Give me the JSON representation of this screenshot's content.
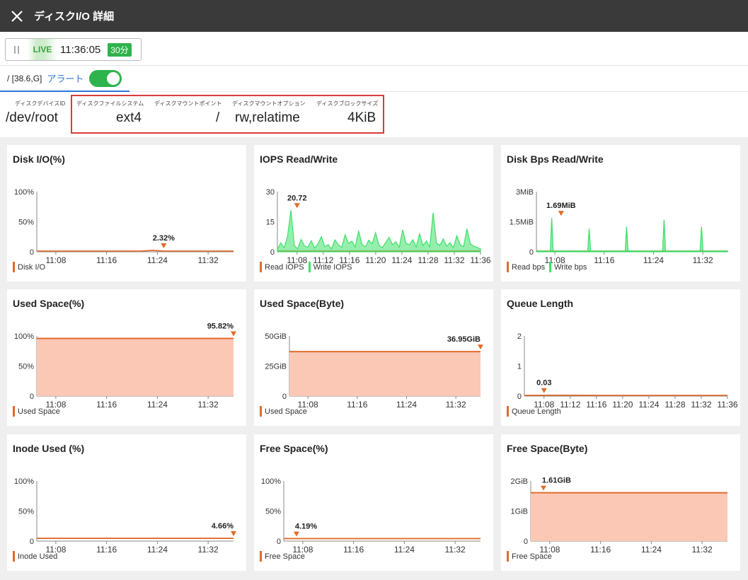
{
  "window": {
    "title": "ディスクI/O 詳細",
    "close_icon": "close-icon"
  },
  "toolbar": {
    "live_label": "LIVE",
    "time": "11:36:05",
    "range_badge": "30分",
    "pause_icon": "pause-icon"
  },
  "tab": {
    "path": "/ [38.6,G]",
    "alert_label": "アラート",
    "alert_enabled": true
  },
  "info": [
    {
      "label": "ディスクデバイスID",
      "value": "/dev/root"
    },
    {
      "label": "ディスクファイルシステム",
      "value": "ext4"
    },
    {
      "label": "ディスクマウントポイント",
      "value": "/"
    },
    {
      "label": "ディスクマウントオプション",
      "value": "rw,relatime"
    },
    {
      "label": "ディスクブロックサイズ",
      "value": "4KiB"
    }
  ],
  "colors": {
    "orange": "#e06c2c",
    "green": "#3fe06a",
    "fill": "#fbc8b6",
    "badge": "#2eb34d",
    "accent": "#2f74d8"
  },
  "chart_data": [
    {
      "type": "line",
      "title": "Disk I/O(%)",
      "yticks": [
        "100%",
        "50%",
        "0"
      ],
      "ylim": [
        0,
        100
      ],
      "xticks": [
        "11:08",
        "11:16",
        "11:24",
        "11:32"
      ],
      "series": [
        {
          "name": "Disk I/O",
          "color": "#e06c2c",
          "shape": "flat",
          "values": [
            0.3,
            0.4,
            0.5,
            0.4,
            0.6,
            0.5,
            0.4,
            0.7,
            0.8,
            1.0,
            2.32,
            0.6,
            0.5,
            0.5,
            0.4,
            0.5,
            0.4,
            0.3
          ]
        }
      ],
      "peak": {
        "label": "2.32%",
        "value": 2.32,
        "time": "11:25"
      }
    },
    {
      "type": "line",
      "title": "IOPS Read/Write",
      "yticks": [
        "30",
        "15",
        "0"
      ],
      "ylim": [
        0,
        30
      ],
      "xticks": [
        "11:08",
        "11:12",
        "11:16",
        "11:20",
        "11:24",
        "11:28",
        "11:32",
        "11:36"
      ],
      "series": [
        {
          "name": "Read IOPS",
          "color": "#e06c2c",
          "shape": "flat",
          "values": [
            0.1,
            0.1,
            0.1
          ]
        },
        {
          "name": "Write IOPS",
          "color": "#3fe06a",
          "shape": "noisy",
          "values": [
            1.2,
            4.5,
            2.0,
            7.8,
            20.72,
            3.1,
            1.5,
            6.2,
            3.0,
            2.2,
            5.5,
            1.8,
            4.0,
            7.5,
            2.5,
            3.6,
            1.5,
            6.0,
            3.5,
            2.2,
            8.5,
            4.2,
            5.3,
            2.4,
            10.5,
            3.6,
            2.5,
            5.8,
            4.0,
            9.5,
            3.2,
            2.1,
            4.6,
            7.2,
            3.5,
            5.0,
            2.2,
            11.0,
            4.2,
            3.5,
            6.1,
            2.4,
            9.0,
            3.1,
            5.4,
            2.5,
            19.5,
            4.4,
            3.2,
            6.5,
            2.8,
            4.5,
            2.1,
            8.0,
            3.5,
            2.6,
            11.5,
            4.0,
            2.8,
            2.2,
            1.5
          ]
        }
      ],
      "peak": {
        "label": "20.72",
        "value": 20.72,
        "time": "11:08"
      }
    },
    {
      "type": "line",
      "title": "Disk Bps Read/Write",
      "yticks": [
        "3MiB",
        "1.5MiB",
        "0"
      ],
      "ylim": [
        0,
        3
      ],
      "xticks": [
        "11:08",
        "11:16",
        "11:24",
        "11:32"
      ],
      "series": [
        {
          "name": "Read bps",
          "color": "#e06c2c",
          "shape": "flat",
          "values": [
            0,
            0,
            0
          ]
        },
        {
          "name": "Write bps",
          "color": "#3fe06a",
          "shape": "spikes",
          "values": [
            0.05,
            1.69,
            0.05,
            0.05,
            1.15,
            0.05,
            0.05,
            1.25,
            0.05,
            0.05,
            1.6,
            0.05,
            0.05,
            1.25,
            0.05,
            0.05
          ]
        }
      ],
      "peak": {
        "label": "1.69MiB",
        "value": 1.69,
        "time": "11:09"
      }
    },
    {
      "type": "area",
      "title": "Used Space(%)",
      "yticks": [
        "100%",
        "50%",
        "0"
      ],
      "ylim": [
        0,
        100
      ],
      "xticks": [
        "11:08",
        "11:16",
        "11:24",
        "11:32"
      ],
      "series": [
        {
          "name": "Used Space",
          "color": "#e06c2c",
          "shape": "area",
          "values": [
            95.82,
            95.82
          ]
        }
      ],
      "peak": {
        "label": "95.82%",
        "value": 95.82,
        "time": "11:36"
      }
    },
    {
      "type": "area",
      "title": "Used Space(Byte)",
      "yticks": [
        "50GiB",
        "25GiB",
        "0"
      ],
      "ylim": [
        0,
        50
      ],
      "xticks": [
        "11:08",
        "11:16",
        "11:24",
        "11:32"
      ],
      "series": [
        {
          "name": "Used Space",
          "color": "#e06c2c",
          "shape": "area",
          "values": [
            36.95,
            36.95
          ]
        }
      ],
      "peak": {
        "label": "36.95GiB",
        "value": 36.95,
        "time": "11:36"
      }
    },
    {
      "type": "line",
      "title": "Queue Length",
      "yticks": [
        "2",
        "1",
        "0"
      ],
      "ylim": [
        0,
        2
      ],
      "xticks": [
        "11:08",
        "11:12",
        "11:16",
        "11:20",
        "11:24",
        "11:28",
        "11:32",
        "11:36"
      ],
      "series": [
        {
          "name": "Queue Length",
          "color": "#e06c2c",
          "shape": "flat",
          "values": [
            0.01,
            0.03,
            0.01,
            0.01,
            0.01,
            0.01
          ]
        }
      ],
      "peak": {
        "label": "0.03",
        "value": 0.03,
        "time": "11:08"
      }
    },
    {
      "type": "line",
      "title": "Inode Used (%)",
      "yticks": [
        "100%",
        "50%",
        "0"
      ],
      "ylim": [
        0,
        100
      ],
      "xticks": [
        "11:08",
        "11:16",
        "11:24",
        "11:32"
      ],
      "series": [
        {
          "name": "Inode Used",
          "color": "#e06c2c",
          "shape": "flat",
          "values": [
            4.66,
            4.66
          ]
        }
      ],
      "peak": {
        "label": "4.66%",
        "value": 4.66,
        "time": "11:36"
      }
    },
    {
      "type": "line",
      "title": "Free Space(%)",
      "yticks": [
        "100%",
        "50%",
        "0"
      ],
      "ylim": [
        0,
        100
      ],
      "xticks": [
        "11:08",
        "11:16",
        "11:24",
        "11:32"
      ],
      "series": [
        {
          "name": "Free Space",
          "color": "#e06c2c",
          "shape": "flat",
          "values": [
            4.19,
            4.19
          ]
        }
      ],
      "peak": {
        "label": "4.19%",
        "value": 4.19,
        "time": "11:07"
      }
    },
    {
      "type": "area",
      "title": "Free Space(Byte)",
      "yticks": [
        "2GiB",
        "1GiB",
        "0"
      ],
      "ylim": [
        0,
        2
      ],
      "xticks": [
        "11:08",
        "11:16",
        "11:24",
        "11:32"
      ],
      "series": [
        {
          "name": "Free Space",
          "color": "#e06c2c",
          "shape": "area",
          "values": [
            1.61,
            1.61
          ]
        }
      ],
      "peak": {
        "label": "1.61GiB",
        "value": 1.61,
        "time": "11:07"
      }
    }
  ]
}
